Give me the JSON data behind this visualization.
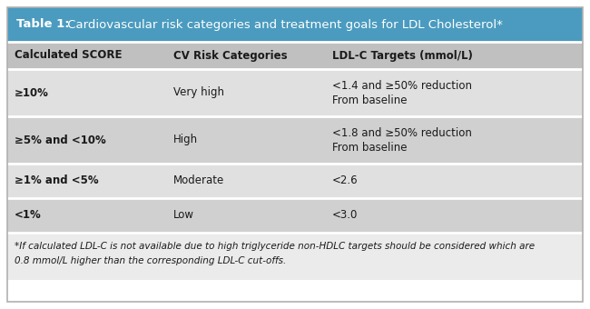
{
  "title_bold": "Table 1:",
  "title_regular": " Cardiovascular risk categories and treatment goals for LDL Cholesterol*",
  "title_bg": "#4a9bbf",
  "title_text_color": "#ffffff",
  "header_bg": "#c0c0c0",
  "header_text_color": "#1a1a1a",
  "row_bgs": [
    "#e0e0e0",
    "#d0d0d0",
    "#e0e0e0",
    "#d0d0d0"
  ],
  "footer_bg": "#ebebeb",
  "outer_border_color": "#b0b0b0",
  "text_color": "#1a1a1a",
  "columns": [
    "Calculated SCORE",
    "CV Risk Categories",
    "LDL-C Targets (mmol/L)"
  ],
  "rows": [
    {
      "score": "≥10%",
      "risk": "Very high",
      "target_lines": [
        "<1.4 and ≥50% reduction",
        "From baseline"
      ]
    },
    {
      "score": "≥5% and <10%",
      "risk": "High",
      "target_lines": [
        "<1.8 and ≥50% reduction",
        "From baseline"
      ]
    },
    {
      "score": "≥1% and <5%",
      "risk": "Moderate",
      "target_lines": [
        "<2.6"
      ]
    },
    {
      "score": "<1%",
      "risk": "Low",
      "target_lines": [
        "<3.0"
      ]
    }
  ],
  "footer_line1": "*If calculated LDL-C is not available due to high triglyceride non-HDLC targets should be considered which are",
  "footer_line2": "0.8 mmol/L higher than the corresponding LDL-C cut-offs."
}
